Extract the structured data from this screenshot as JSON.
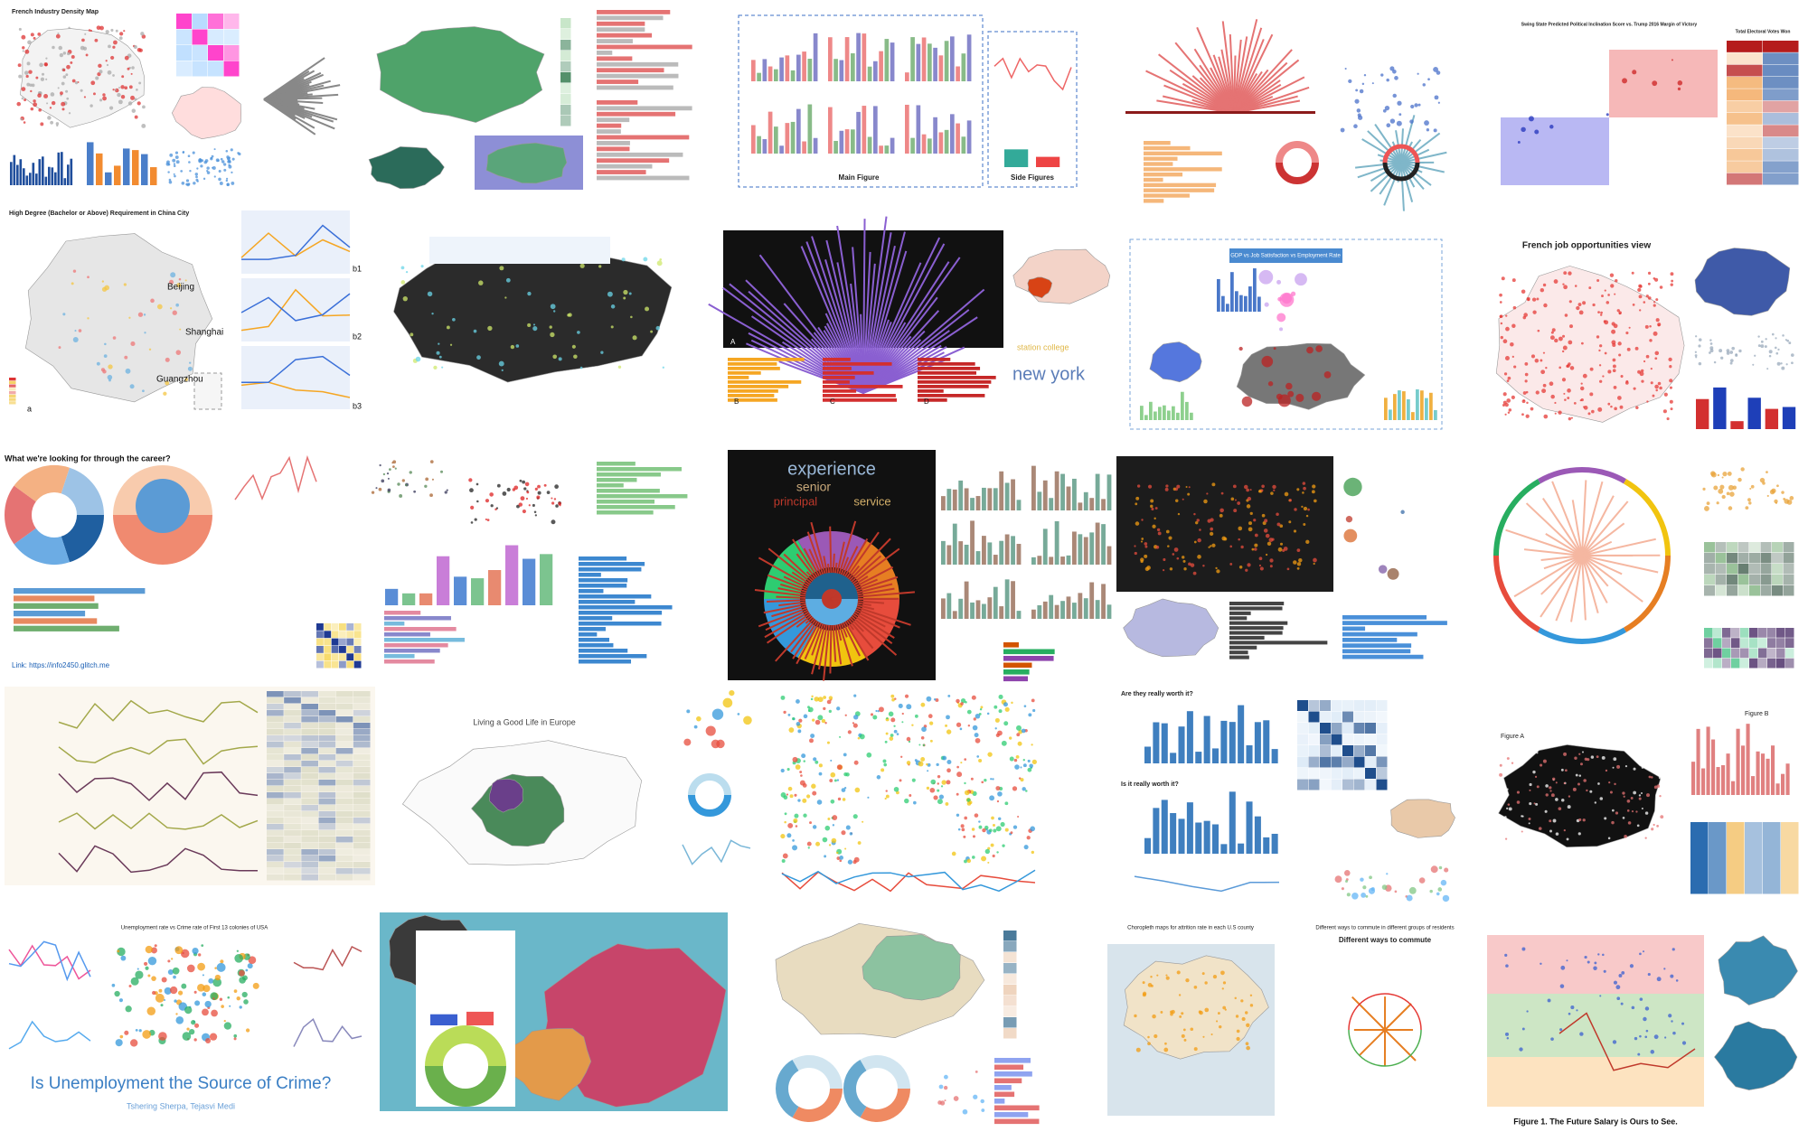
{
  "industry_map": {
    "title": "French Industry Density Map"
  },
  "community": {
    "main": "Main Figure",
    "side": "Side Figures"
  },
  "swing": {
    "title": "Swing State Predicted Political Inclination Score vs. Trump 2016 Margin of Victory",
    "side_title": "Total Electoral Votes Won"
  },
  "china": {
    "title": "High Degree (Bachelor or Above) Requirement in China City",
    "cities": [
      "Beijing",
      "Shanghai",
      "Guangzhou"
    ],
    "panel": "a",
    "sub_panels": [
      "b1",
      "b2",
      "b3"
    ]
  },
  "flights": {
    "panels": [
      "A",
      "B",
      "C",
      "D"
    ]
  },
  "wordcloud_small": {
    "words": [
      "new york",
      "station college"
    ]
  },
  "gdp": {
    "title": "GDP vs Job Satisfaction vs Employment Rate"
  },
  "french_jobs": {
    "title": "French job opportunities view"
  },
  "career": {
    "title": "What we're looking for  through the career?",
    "link": "Link: https://info2450.glitch.me"
  },
  "dark_words": {
    "words": [
      "experience",
      "senior",
      "principal",
      "service"
    ]
  },
  "europe": {
    "title": "Living a Good Life in Europe"
  },
  "worth": {
    "title_1": "Are they really worth it?",
    "title_2": "Is it really worth it?"
  },
  "figure_ab": {
    "left": "Figure A",
    "right": "Figure B"
  },
  "crime": {
    "chart_title": "Unemployment rate vs Crime rate of First 13 colonies of USA",
    "title": "Is Unemployment the Source of Crime?",
    "authors": "Tshering Sherpa, Tejasvi Medi"
  },
  "attrition": {
    "title": "Choropleth maps for attrition rate in each U.S county"
  },
  "commute": {
    "title": "Different ways to commute in different groups of residents",
    "subtitle": "Different ways to commute"
  },
  "salary": {
    "caption": "Figure 1. The Future Salary is Ours to See."
  }
}
